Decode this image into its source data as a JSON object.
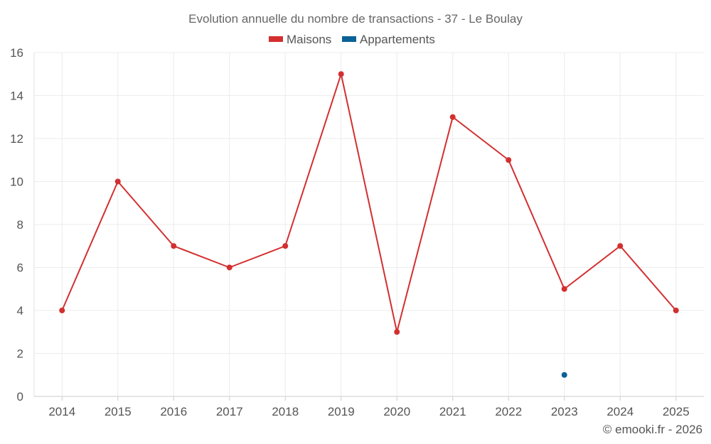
{
  "chart_data": {
    "type": "line",
    "title": "Evolution annuelle du nombre de transactions - 37 - Le Boulay",
    "x": [
      "2014",
      "2015",
      "2016",
      "2017",
      "2018",
      "2019",
      "2020",
      "2021",
      "2022",
      "2023",
      "2024",
      "2025"
    ],
    "series": [
      {
        "name": "Maisons",
        "color": "#d32f2f",
        "values": [
          4,
          10,
          7,
          6,
          7,
          15,
          3,
          13,
          11,
          5,
          7,
          4
        ]
      },
      {
        "name": "Appartements",
        "color": "#0a6296",
        "values": [
          null,
          null,
          null,
          null,
          null,
          null,
          null,
          null,
          null,
          1,
          null,
          null
        ]
      }
    ],
    "xlabel": "",
    "ylabel": "",
    "ylim": [
      0,
      16
    ],
    "yticks": [
      0,
      2,
      4,
      6,
      8,
      10,
      12,
      14,
      16
    ],
    "grid": true,
    "legend_position": "top-center"
  },
  "credit": "© emooki.fr - 2026"
}
